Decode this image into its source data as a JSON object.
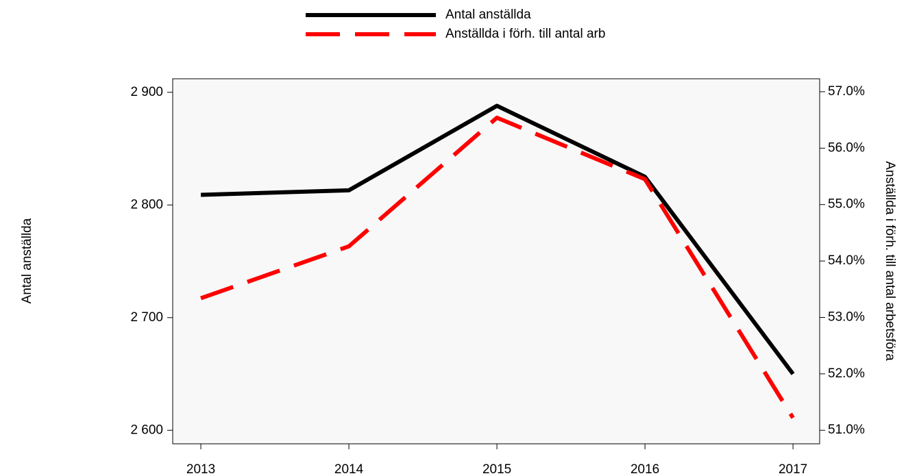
{
  "chart_data": {
    "type": "line",
    "x": [
      2013,
      2014,
      2015,
      2016,
      2017
    ],
    "xlim": [
      2012.81,
      2017.18
    ],
    "xticks": [
      2013,
      2014,
      2015,
      2016,
      2017
    ],
    "ylim": [
      2588,
      2912
    ],
    "yticks": [
      {
        "value": 2600,
        "label": "2 600"
      },
      {
        "value": 2700,
        "label": "2 700"
      },
      {
        "value": 2800,
        "label": "2 800"
      },
      {
        "value": 2900,
        "label": "2 900"
      }
    ],
    "y2lim": [
      50.76,
      57.23
    ],
    "y2ticks": [
      {
        "value": 51,
        "label": "51.0%"
      },
      {
        "value": 52,
        "label": "52.0%"
      },
      {
        "value": 53,
        "label": "53.0%"
      },
      {
        "value": 54,
        "label": "54.0%"
      },
      {
        "value": 55,
        "label": "55.0%"
      },
      {
        "value": 56,
        "label": "56.0%"
      },
      {
        "value": 57,
        "label": "57.0%"
      }
    ],
    "ylabel": "Antal anställda",
    "y2label": "Anställda i förh. till antal arbetsföra",
    "series": [
      {
        "name": "Antal anställda",
        "color": "#000000",
        "values": [
          2809,
          2813,
          2888,
          2825,
          2650
        ]
      },
      {
        "name": "Anställda i förh. till antal arb",
        "color": "#ff0000",
        "axis": "y2",
        "values": [
          53.34,
          54.26,
          56.54,
          55.45,
          51.22
        ]
      }
    ]
  }
}
